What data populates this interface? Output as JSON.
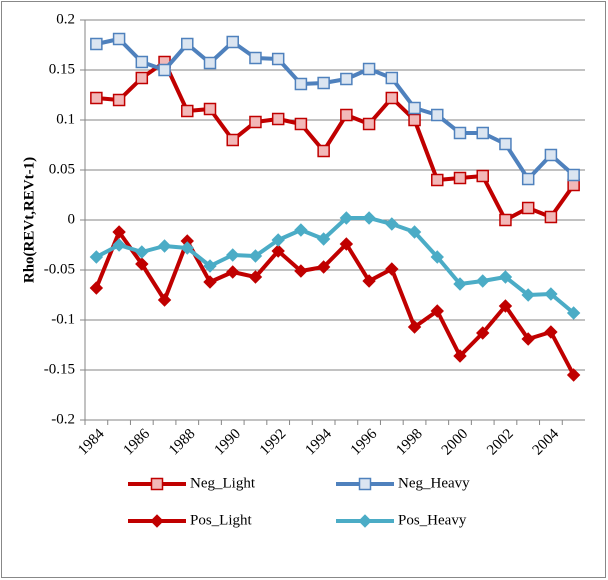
{
  "chart_data": {
    "type": "line",
    "y_label": "Rho(REVt,REVt-1)",
    "categories": [
      "1984",
      null,
      "1986",
      null,
      "1988",
      null,
      "1990",
      null,
      "1992",
      null,
      "1994",
      null,
      "1996",
      null,
      "1998",
      null,
      "2000",
      null,
      "2002",
      null,
      "2004",
      null
    ],
    "ylim": [
      -0.2,
      0.2
    ],
    "yticks": [
      -0.2,
      -0.15,
      -0.1,
      -0.05,
      0,
      0.05,
      0.1,
      0.15,
      0.2
    ],
    "grid": true,
    "legend": "bottom",
    "series": [
      {
        "name": "Neg_Light",
        "color": "#c00000",
        "marker": "square",
        "marker_fill": "#f2b8b8",
        "values": [
          0.122,
          0.12,
          0.142,
          0.158,
          0.109,
          0.111,
          0.08,
          0.098,
          0.101,
          0.096,
          0.069,
          0.105,
          0.096,
          0.122,
          0.1,
          0.04,
          0.042,
          0.044,
          0.0,
          0.012,
          0.003,
          0.035
        ]
      },
      {
        "name": "Neg_Heavy",
        "color": "#4f81bd",
        "marker": "square",
        "marker_fill": "#dbe5f1",
        "values": [
          0.176,
          0.181,
          0.158,
          0.15,
          0.176,
          0.157,
          0.178,
          0.162,
          0.161,
          0.136,
          0.137,
          0.141,
          0.151,
          0.142,
          0.112,
          0.105,
          0.087,
          0.087,
          0.076,
          0.041,
          0.065,
          0.045
        ]
      },
      {
        "name": "Pos_Light",
        "color": "#c00000",
        "marker": "diamond",
        "marker_fill": "#c00000",
        "values": [
          -0.068,
          -0.012,
          -0.044,
          -0.08,
          -0.021,
          -0.062,
          -0.052,
          -0.057,
          -0.031,
          -0.051,
          -0.047,
          -0.024,
          -0.061,
          -0.049,
          -0.107,
          -0.091,
          -0.136,
          -0.113,
          -0.086,
          -0.119,
          -0.112,
          -0.155
        ]
      },
      {
        "name": "Pos_Heavy",
        "color": "#4bacc6",
        "marker": "diamond",
        "marker_fill": "#4bacc6",
        "values": [
          -0.037,
          -0.025,
          -0.032,
          -0.026,
          -0.028,
          -0.046,
          -0.035,
          -0.036,
          -0.02,
          -0.01,
          -0.019,
          0.002,
          0.002,
          -0.004,
          -0.012,
          -0.037,
          -0.064,
          -0.061,
          -0.057,
          -0.075,
          -0.074,
          -0.093
        ]
      }
    ]
  }
}
